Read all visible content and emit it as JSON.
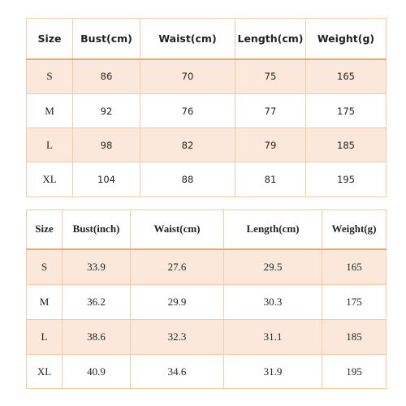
{
  "tables": [
    {
      "header": [
        "Size",
        "Bust(cm)",
        "Waist(cm)",
        "Length(cm)",
        "Weight(g)"
      ],
      "rows": [
        [
          "S",
          "86",
          "70",
          "75",
          "165"
        ],
        [
          "M",
          "92",
          "76",
          "77",
          "175"
        ],
        [
          "L",
          "98",
          "82",
          "79",
          "185"
        ],
        [
          "XL",
          "104",
          "88",
          "81",
          "195"
        ]
      ]
    },
    {
      "header": [
        "Size",
        "Bust(inch)",
        "Waist(cm)",
        "Length(cm)",
        "Weight(g)"
      ],
      "rows": [
        [
          "S",
          "33.9",
          "27.6",
          "29.5",
          "165"
        ],
        [
          "M",
          "36.2",
          "29.9",
          "30.3",
          "175"
        ],
        [
          "L",
          "38.6",
          "32.3",
          "31.1",
          "185"
        ],
        [
          "XL",
          "40.9",
          "34.6",
          "31.9",
          "195"
        ]
      ]
    }
  ]
}
